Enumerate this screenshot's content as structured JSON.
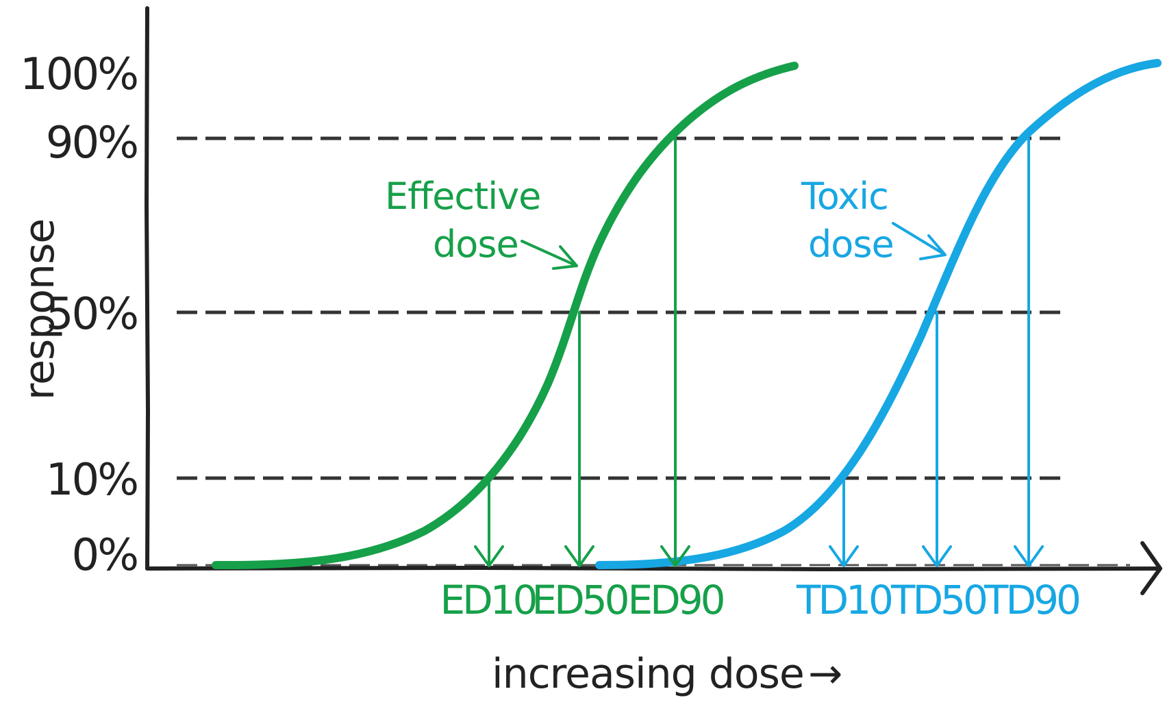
{
  "colors": {
    "effective": "#16a049",
    "toxic": "#17a7e3",
    "axis": "#222222",
    "guide": "#333333",
    "background": "#ffffff"
  },
  "y_axis": {
    "title": "response",
    "ticks": [
      "100%",
      "90%",
      "50%",
      "10%",
      "0%"
    ]
  },
  "x_axis": {
    "title": "increasing dose",
    "arrow": "→"
  },
  "curves": {
    "effective": {
      "label_line1": "Effective",
      "label_line2": "dose",
      "markers": [
        "ED10",
        "ED50",
        "ED90"
      ]
    },
    "toxic": {
      "label_line1": "Toxic",
      "label_line2": "dose",
      "markers": [
        "TD10",
        "TD50",
        "TD90"
      ]
    }
  }
}
